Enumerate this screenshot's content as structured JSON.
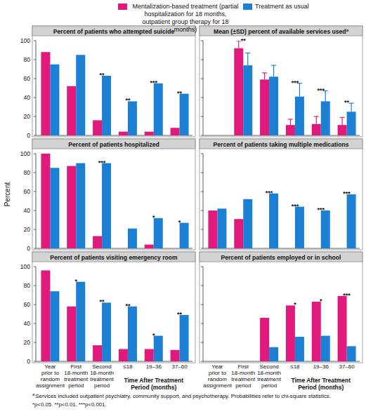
{
  "chart_data": [
    {
      "type": "bar",
      "title": "Percent of patients who attempted suicide",
      "legend": "top",
      "categories": [
        "Year\nprior to\nrandom\nassignment",
        "First\n18-month\ntreatment\nperiod",
        "Second\n18-month\ntreatment\nperiod",
        "≤18",
        "19–36",
        "37–60"
      ],
      "series": [
        {
          "name": "Mentalization-based treatment (partial hospitalization for 18 months, outpatient group therapy for 18 months)",
          "color": "#e2197c",
          "values": [
            88,
            52,
            16,
            4,
            4,
            8
          ]
        },
        {
          "name": "Treatment as usual",
          "color": "#1b7fd3",
          "values": [
            75,
            85,
            63,
            36,
            55,
            44
          ]
        }
      ],
      "significance": [
        null,
        null,
        "**",
        "**",
        "***",
        "**"
      ],
      "ylim": [
        0,
        100
      ],
      "yticks": [
        0,
        20,
        40,
        60,
        80,
        100
      ],
      "tick_labels": "y"
    },
    {
      "type": "bar",
      "title": "Mean (±SD) percent of available services used",
      "title_superscript": "a",
      "categories": [
        "Year\nprior to\nrandom\nassignment",
        "First\n18-month\ntreatment\nperiod",
        "Second\n18-month\ntreatment\nperiod",
        "≤18",
        "19–36",
        "37–60"
      ],
      "series": [
        {
          "name": "Mentalization-based treatment (partial hospitalization for 18 months, outpatient group therapy for 18 months)",
          "color": "#e2197c",
          "values": [
            null,
            92,
            59,
            11,
            12,
            11
          ],
          "errors": [
            null,
            8,
            7,
            6,
            8,
            8
          ]
        },
        {
          "name": "Treatment as usual",
          "color": "#1b7fd3",
          "values": [
            null,
            74,
            62,
            41,
            36,
            25
          ],
          "errors": [
            null,
            13,
            12,
            14,
            11,
            9
          ]
        }
      ],
      "significance": [
        null,
        "**",
        null,
        "***",
        "***",
        "**"
      ],
      "ylim": [
        0,
        100
      ],
      "yticks": [
        0,
        20,
        40,
        60,
        80,
        100
      ],
      "tick_labels": false
    },
    {
      "type": "bar",
      "title": "Percent of patients hospitalized",
      "ylabel": "Percent",
      "categories": [
        "Year\nprior to\nrandom\nassignment",
        "First\n18-month\ntreatment\nperiod",
        "Second\n18-month\ntreatment\nperiod",
        "≤18",
        "19–36",
        "37–60"
      ],
      "series": [
        {
          "name": "Mentalization-based treatment (partial hospitalization for 18 months, outpatient group therapy for 18 months)",
          "color": "#e2197c",
          "values": [
            100,
            87,
            13,
            0,
            4,
            0
          ]
        },
        {
          "name": "Treatment as usual",
          "color": "#1b7fd3",
          "values": [
            85,
            90,
            90,
            21,
            32,
            27
          ]
        }
      ],
      "significance": [
        null,
        null,
        "***",
        null,
        "*",
        "*"
      ],
      "ylim": [
        0,
        100
      ],
      "yticks": [
        0,
        20,
        40,
        60,
        80,
        100
      ],
      "tick_labels": "y"
    },
    {
      "type": "bar",
      "title": "Percent of patients taking multiple medications",
      "categories": [
        "Year\nprior to\nrandom\nassignment",
        "First\n18-month\ntreatment\nperiod",
        "Second\n18-month\ntreatment\nperiod",
        "≤18",
        "19–36",
        "37–60"
      ],
      "series": [
        {
          "name": "Mentalization-based treatment (partial hospitalization for 18 months, outpatient group therapy for 18 months)",
          "color": "#e2197c",
          "values": [
            40,
            31,
            0,
            0,
            0,
            0
          ]
        },
        {
          "name": "Treatment as usual",
          "color": "#1b7fd3",
          "values": [
            42,
            52,
            58,
            44,
            40,
            57
          ]
        }
      ],
      "significance": [
        null,
        null,
        "***",
        "***",
        "***",
        "***"
      ],
      "ylim": [
        0,
        100
      ],
      "yticks": [
        0,
        20,
        40,
        60,
        80,
        100
      ],
      "tick_labels": false
    },
    {
      "type": "bar",
      "title": "Percent of patients visiting emergency room",
      "x_group_label": "Time After Treatment\nPeriod (months)",
      "categories": [
        "Year\nprior to\nrandom\nassignment",
        "First\n18-month\ntreatment\nperiod",
        "Second\n18-month\ntreatment\nperiod",
        "≤18",
        "19–36",
        "37–60"
      ],
      "series": [
        {
          "name": "Mentalization-based treatment (partial hospitalization for 18 months, outpatient group therapy for 18 months)",
          "color": "#e2197c",
          "values": [
            96,
            58,
            17,
            13,
            13,
            12
          ]
        },
        {
          "name": "Treatment as usual",
          "color": "#1b7fd3",
          "values": [
            74,
            84,
            62,
            58,
            27,
            49
          ]
        }
      ],
      "significance": [
        null,
        "*",
        "**",
        "**",
        "*",
        "**"
      ],
      "ylim": [
        0,
        100
      ],
      "yticks": [
        0,
        20,
        40,
        60,
        80,
        100
      ]
    },
    {
      "type": "bar",
      "title": "Percent of patients employed or in school",
      "x_group_label": "Time After Treatment\nPeriod (months)",
      "categories": [
        "Year\nprior to\nrandom\nassignment",
        "First\n18-month\ntreatment\nperiod",
        "Second\n18-month\ntreatment\nperiod",
        "≤18",
        "19–36",
        "37–60"
      ],
      "series": [
        {
          "name": "Mentalization-based treatment (partial hospitalization for 18 months, outpatient group therapy for 18 months)",
          "color": "#e2197c",
          "values": [
            null,
            null,
            46,
            59,
            63,
            69
          ]
        },
        {
          "name": "Treatment as usual",
          "color": "#1b7fd3",
          "values": [
            null,
            null,
            15,
            26,
            27,
            16
          ]
        }
      ],
      "significance": [
        null,
        null,
        null,
        "*",
        "*",
        "***"
      ],
      "ylim": [
        0,
        100
      ],
      "yticks": [
        0,
        20,
        40,
        60,
        80,
        100
      ],
      "tick_labels": "x"
    }
  ],
  "footnotes": [
    {
      "marker": "a",
      "text": "Services included outpatient psychiatry, community support, and psychotherapy. Probabilities refer to chi-square statistics."
    },
    {
      "text": "*p<0.05. **p<0.01. ***p<0.001."
    }
  ]
}
